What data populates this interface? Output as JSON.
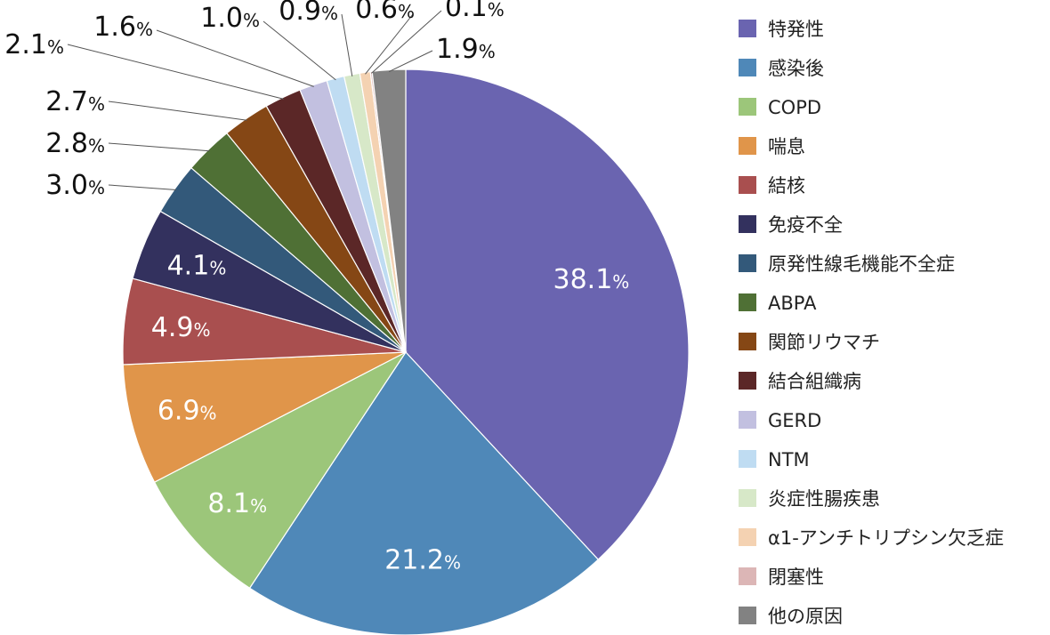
{
  "chart_data": {
    "type": "pie",
    "title": "",
    "unit": "%",
    "legend_position": "right",
    "slices": [
      {
        "label": "特発性",
        "value": 38.1,
        "color": "#6a64b0",
        "value_label": "38.1"
      },
      {
        "label": "感染後",
        "value": 21.2,
        "color": "#4f88b8",
        "value_label": "21.2"
      },
      {
        "label": "COPD",
        "value": 8.1,
        "color": "#9cc67a",
        "value_label": "8.1"
      },
      {
        "label": "喘息",
        "value": 6.9,
        "color": "#e0954a",
        "value_label": "6.9"
      },
      {
        "label": "結核",
        "value": 4.9,
        "color": "#a94f4f",
        "value_label": "4.9"
      },
      {
        "label": "免疫不全",
        "value": 4.1,
        "color": "#33315e",
        "value_label": "4.1"
      },
      {
        "label": "原発性線毛機能不全症",
        "value": 3.0,
        "color": "#33597a",
        "value_label": "3.0"
      },
      {
        "label": "ABPA",
        "value": 2.8,
        "color": "#4f7035",
        "value_label": "2.8"
      },
      {
        "label": "関節リウマチ",
        "value": 2.7,
        "color": "#854715",
        "value_label": "2.7"
      },
      {
        "label": "結合組織病",
        "value": 2.1,
        "color": "#5b2727",
        "value_label": "2.1"
      },
      {
        "label": "GERD",
        "value": 1.6,
        "color": "#c2c0e0",
        "value_label": "1.6"
      },
      {
        "label": "NTM",
        "value": 1.0,
        "color": "#bfdcf2",
        "value_label": "1.0"
      },
      {
        "label": "炎症性腸疾患",
        "value": 0.9,
        "color": "#d7e8c8",
        "value_label": "0.9"
      },
      {
        "label": "α1-アンチトリプシン欠乏症",
        "value": 0.6,
        "color": "#f4d2b2",
        "value_label": "0.6"
      },
      {
        "label": "閉塞性",
        "value": 0.1,
        "color": "#dcb6b6",
        "value_label": "0.1"
      },
      {
        "label": "他の原因",
        "value": 1.9,
        "color": "#828282",
        "value_label": "1.9"
      }
    ]
  }
}
